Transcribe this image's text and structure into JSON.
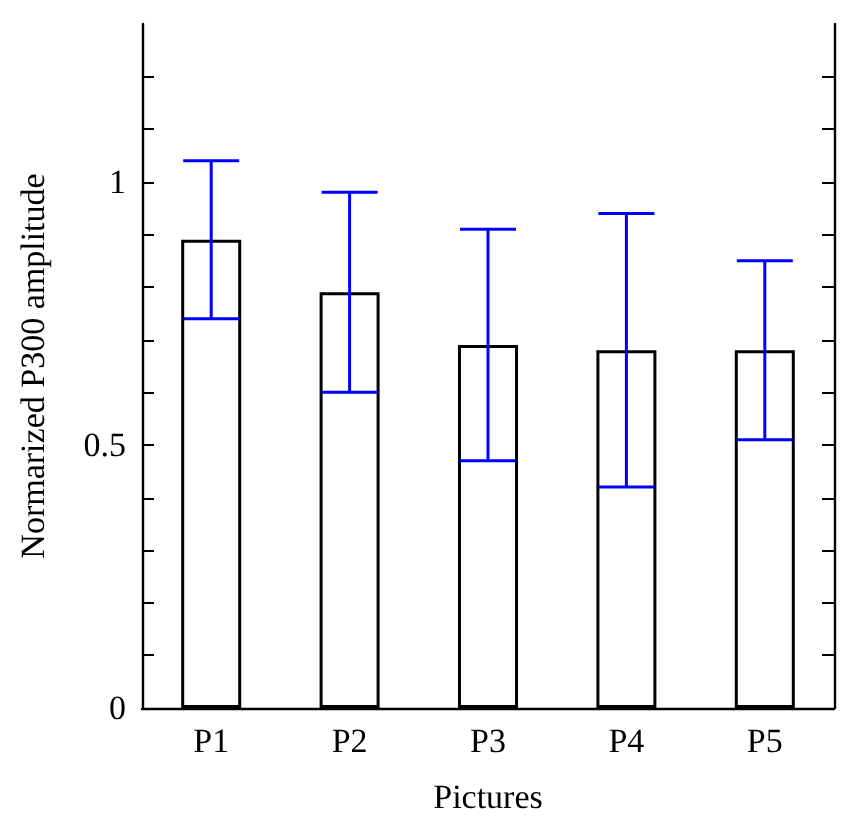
{
  "chart_data": {
    "type": "bar",
    "xlabel": "Pictures",
    "ylabel": "Normarized P300 amplitude",
    "categories": [
      "P1",
      "P2",
      "P3",
      "P4",
      "P5"
    ],
    "series": [
      {
        "color": "#ffffff",
        "values": [
          0.89,
          0.79,
          0.69,
          0.68,
          0.68
        ],
        "errors": [
          0.15,
          0.19,
          0.22,
          0.26,
          0.17
        ]
      }
    ],
    "ylim": [
      0,
      1.3
    ],
    "yticks": [
      0,
      {
        "value": 0.1,
        "label": null
      },
      {
        "value": 0.2,
        "label": null
      },
      {
        "value": 0.3,
        "label": null
      },
      {
        "value": 0.4,
        "label": null
      },
      0.5,
      {
        "value": 0.6,
        "label": null
      },
      {
        "value": 0.7,
        "label": null
      },
      {
        "value": 0.8,
        "label": null
      },
      {
        "value": 0.9,
        "label": null
      },
      1,
      {
        "value": 1.1,
        "label": null
      },
      {
        "value": 1.2,
        "label": null
      }
    ],
    "grid": false
  }
}
